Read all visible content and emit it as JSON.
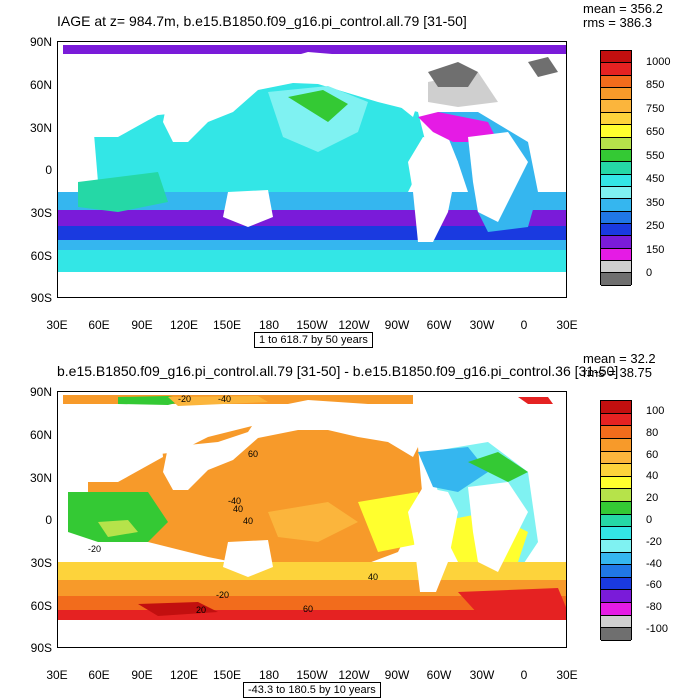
{
  "top": {
    "title": "IAGE at z= 984.7m, b.e15.B1850.f09_g16.pi_control.all.79 [31-50]",
    "mean": "mean = 356.2",
    "rms": "rms = 386.3",
    "contour_note": "1 to 618.7 by 50 years",
    "colorbar_labels": [
      "1000",
      "850",
      "750",
      "650",
      "550",
      "450",
      "350",
      "250",
      "150",
      "0"
    ],
    "colorbar_colors": [
      "#c20f0f",
      "#e52222",
      "#f26c1c",
      "#f79a2a",
      "#fbb53c",
      "#fdd33b",
      "#ffff2e",
      "#b6e34a",
      "#34c934",
      "#25d8a6",
      "#33e6e6",
      "#7ff2f2",
      "#35b6ef",
      "#2077e6",
      "#1a3ae0",
      "#7a1bd9",
      "#e51be5",
      "#cfcfcf",
      "#6f6f6f"
    ]
  },
  "bottom": {
    "title": "b.e15.B1850.f09_g16.pi_control.all.79 [31-50] - b.e15.B1850.f09_g16.pi_control.36 [31-50]",
    "mean": "mean = 32.2",
    "rms": "rms = 38.75",
    "contour_note": "-43.3 to 180.5 by 10 years",
    "colorbar_labels": [
      "100",
      "80",
      "60",
      "40",
      "20",
      "0",
      "-20",
      "-40",
      "-60",
      "-80",
      "-100"
    ],
    "colorbar_colors": [
      "#c20f0f",
      "#e52222",
      "#f26c1c",
      "#f79a2a",
      "#fbb53c",
      "#fdd33b",
      "#ffff2e",
      "#b6e34a",
      "#34c934",
      "#25d8a6",
      "#33e6e6",
      "#7ff2f2",
      "#35b6ef",
      "#2077e6",
      "#1a3ae0",
      "#7a1bd9",
      "#e51be5",
      "#cfcfcf",
      "#6f6f6f"
    ],
    "contour_labels": [
      "-20",
      "-40",
      "40",
      "60",
      "-40",
      "40",
      "40",
      "-20",
      "60",
      "-20",
      "20"
    ]
  },
  "axes": {
    "lat_labels": [
      "90N",
      "60N",
      "30N",
      "0",
      "30S",
      "60S",
      "90S"
    ],
    "lon_labels": [
      "30E",
      "60E",
      "90E",
      "120E",
      "150E",
      "180",
      "150W",
      "120W",
      "90W",
      "60W",
      "30W",
      "0",
      "30E"
    ]
  }
}
